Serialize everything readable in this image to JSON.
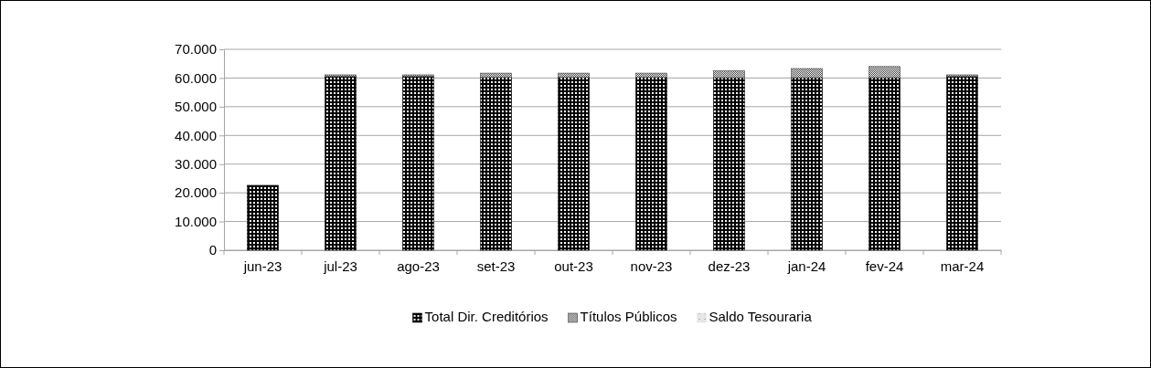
{
  "chart_data": {
    "type": "bar",
    "stacked": true,
    "categories": [
      "jun-23",
      "jul-23",
      "ago-23",
      "set-23",
      "out-23",
      "nov-23",
      "dez-23",
      "jan-24",
      "fev-24",
      "mar-24"
    ],
    "series": [
      {
        "name": "Total Dir. Creditórios",
        "color": "#000000",
        "values": [
          22600,
          60500,
          60500,
          60200,
          60200,
          60200,
          60100,
          60100,
          60100,
          60500
        ]
      },
      {
        "name": "Títulos Públicos",
        "color": "#404040",
        "values": [
          0,
          600,
          600,
          1500,
          1500,
          1500,
          2400,
          3200,
          3900,
          600
        ]
      },
      {
        "name": "Saldo Tesouraria",
        "color": "#e6e6e6",
        "values": [
          null,
          null,
          null,
          null,
          null,
          null,
          null,
          null,
          null,
          null
        ]
      }
    ],
    "ylim": [
      0,
      70000
    ],
    "yticks": [
      {
        "value": 0,
        "label": "0"
      },
      {
        "value": 10000,
        "label": "10.000"
      },
      {
        "value": 20000,
        "label": "20.000"
      },
      {
        "value": 30000,
        "label": "30.000"
      },
      {
        "value": 40000,
        "label": "40.000"
      },
      {
        "value": 50000,
        "label": "50.000"
      },
      {
        "value": 60000,
        "label": "60.000"
      },
      {
        "value": 70000,
        "label": "70.000"
      }
    ],
    "grid": "y",
    "legend": "bottom"
  }
}
